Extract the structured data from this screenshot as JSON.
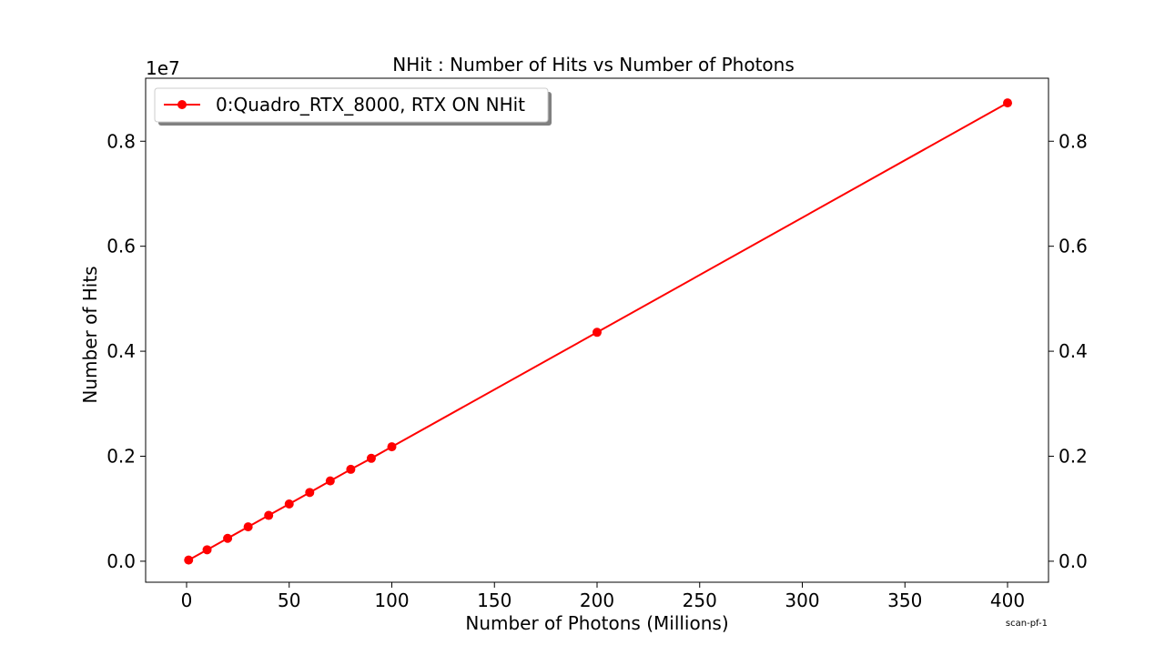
{
  "chart_data": {
    "type": "line",
    "title": "NHit : Number of Hits vs Number of Photons",
    "xlabel": "Number of Photons (Millions)",
    "ylabel": "Number of Hits",
    "y_offset_label": "1e7",
    "footnote": "scan-pf-1",
    "xlim": [
      -19.95,
      419.95
    ],
    "ylim": [
      -0.04,
      0.92
    ],
    "x_ticks": [
      0,
      50,
      100,
      150,
      200,
      250,
      300,
      350,
      400
    ],
    "x_tick_labels": [
      "0",
      "50",
      "100",
      "150",
      "200",
      "250",
      "300",
      "350",
      "400"
    ],
    "y_ticks": [
      0.0,
      0.2,
      0.4,
      0.6,
      0.8
    ],
    "y_tick_labels": [
      "0.0",
      "0.2",
      "0.4",
      "0.6",
      "0.8"
    ],
    "y_ticks_mirrored_right": true,
    "grid": false,
    "legend_position": "top-left",
    "series": [
      {
        "name": "0:Quadro_RTX_8000, RTX ON NHit",
        "color": "#ff0000",
        "marker": "circle",
        "x": [
          1,
          10,
          20,
          30,
          40,
          50,
          60,
          70,
          80,
          90,
          100,
          200,
          400
        ],
        "y": [
          0.0022,
          0.0218,
          0.0436,
          0.0655,
          0.0873,
          0.109,
          0.131,
          0.153,
          0.175,
          0.196,
          0.218,
          0.436,
          0.873
        ]
      }
    ]
  }
}
